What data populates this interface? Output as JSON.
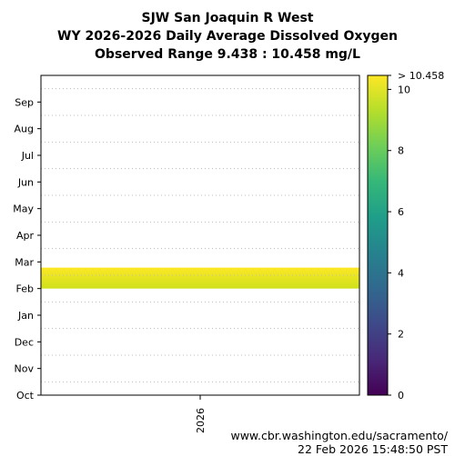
{
  "title": {
    "line1": "SJW San Joaquin R West",
    "line2": "WY 2026-2026 Daily Average Dissolved Oxygen",
    "line3": "Observed Range 9.438 : 10.458 mg/L"
  },
  "footer": {
    "url": "www.cbr.washington.edu/sacramento/",
    "timestamp": "22 Feb 2026 15:48:50 PST"
  },
  "chart_data": {
    "type": "heatmap",
    "x_categories": [
      "2026"
    ],
    "y_categories": [
      "Oct",
      "Nov",
      "Dec",
      "Jan",
      "Feb",
      "Mar",
      "Apr",
      "May",
      "Jun",
      "Jul",
      "Aug",
      "Sep"
    ],
    "data_start": "Feb 1",
    "data_end": "Feb 22",
    "colorbar": {
      "min": 0,
      "max": 10.458,
      "ticks": [
        0,
        2,
        4,
        6,
        8,
        10
      ],
      "top_label": "> 10.458",
      "colormap": "viridis"
    },
    "observed_range": [
      9.438,
      10.458
    ],
    "units": "mg/L",
    "band_colors": [
      "#cfe11c",
      "#fde725"
    ],
    "grid": true
  }
}
